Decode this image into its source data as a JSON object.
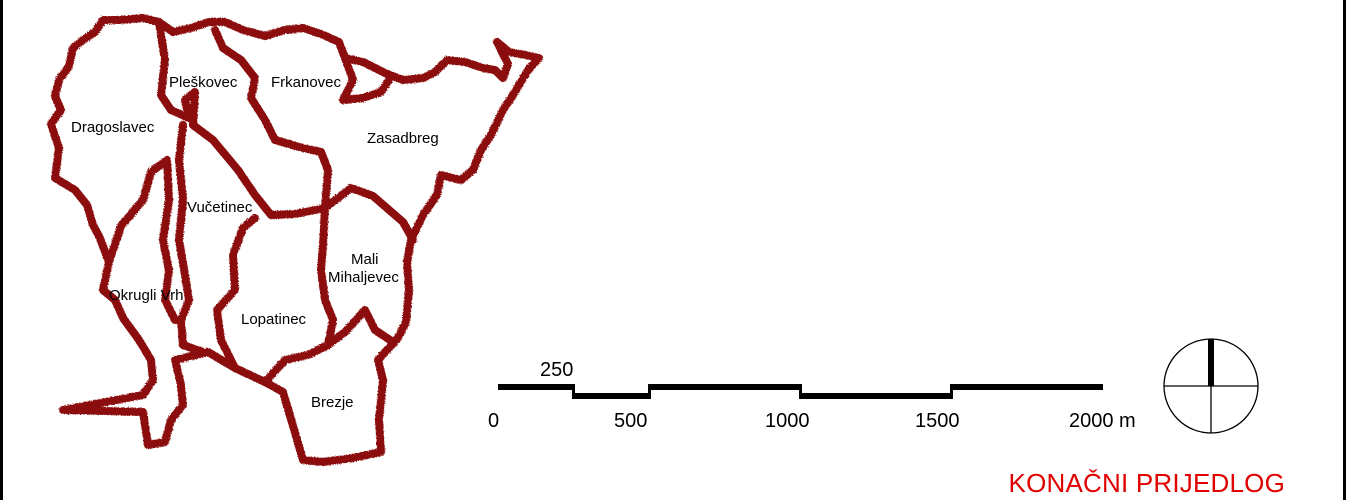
{
  "colors": {
    "boundary": "#8b0b0b",
    "title": "#e00000",
    "ink": "#000000"
  },
  "settlements": [
    "Pleškovec",
    "Frkanovec",
    "Dragoslavec",
    "Zasadbreg",
    "Vučetinec",
    "Mali",
    "Mihaljevec",
    "Okrugli Vrh",
    "Lopatinec",
    "Brezje"
  ],
  "scale_bar": {
    "labels": [
      "0",
      "250",
      "500",
      "1000",
      "1500",
      "2000 m"
    ]
  },
  "north_arrow": "north-arrow-icon",
  "title": "KONAČNI PRIJEDLOG"
}
